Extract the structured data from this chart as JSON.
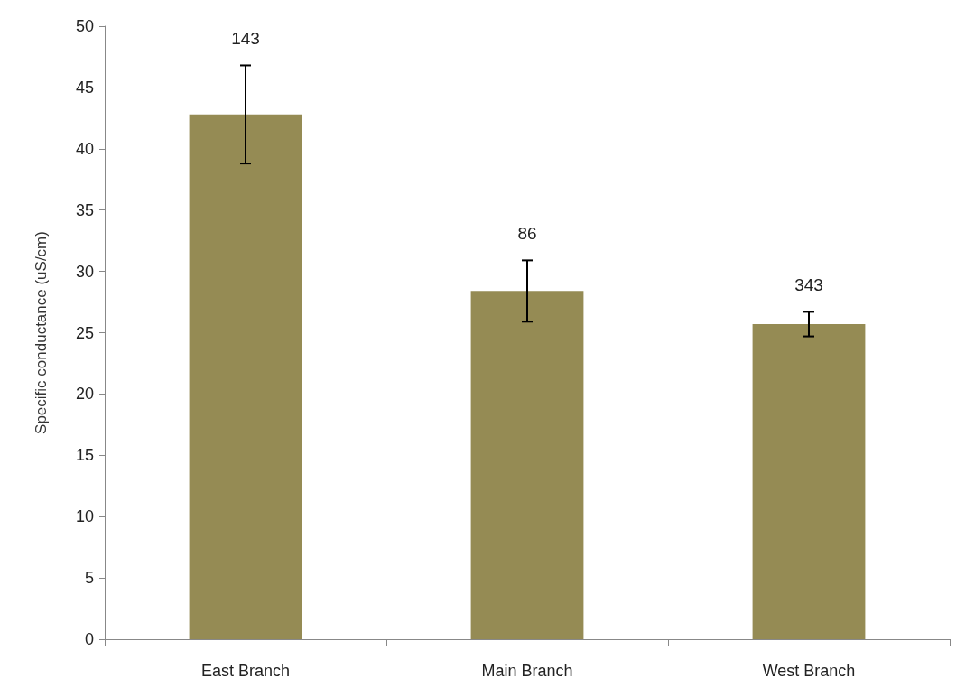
{
  "chart_data": {
    "type": "bar",
    "ylabel": "Specific conductance (uS/cm)",
    "categories": [
      "East Branch",
      "Main Branch",
      "West Branch"
    ],
    "values": [
      42.8,
      28.4,
      25.7
    ],
    "errors": [
      4,
      2.5,
      1
    ],
    "color": "#958b54",
    "ylim": [
      0,
      50
    ],
    "yticks": [
      0,
      5,
      10,
      15,
      20,
      25,
      30,
      35,
      40,
      45,
      50
    ],
    "grid": false,
    "annotations": [
      {
        "text": "143",
        "x": "East Branch",
        "y": 46.8
      },
      {
        "text": "86",
        "x": "Main Branch",
        "y": 30.9
      },
      {
        "text": "343",
        "x": "West Branch",
        "y": 26.7
      }
    ]
  }
}
